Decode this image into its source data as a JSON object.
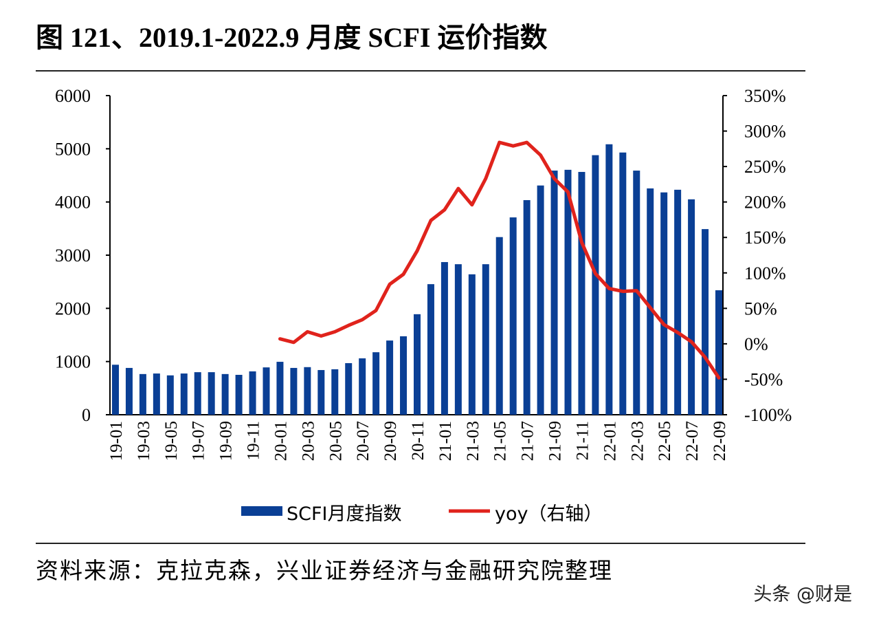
{
  "title": "图 121、2019.1-2022.9 月度 SCFI 运价指数",
  "source": "资料来源：克拉克森，兴业证券经济与金融研究院整理",
  "watermark": "头条 @财是",
  "chart_data": {
    "type": "bar+line",
    "title": "",
    "categories": [
      "19-01",
      "19-02",
      "19-03",
      "19-04",
      "19-05",
      "19-06",
      "19-07",
      "19-08",
      "19-09",
      "19-10",
      "19-11",
      "19-12",
      "20-01",
      "20-02",
      "20-03",
      "20-04",
      "20-05",
      "20-06",
      "20-07",
      "20-08",
      "20-09",
      "20-10",
      "20-11",
      "20-12",
      "21-01",
      "21-02",
      "21-03",
      "21-04",
      "21-05",
      "21-06",
      "21-07",
      "21-08",
      "21-09",
      "21-10",
      "21-11",
      "21-12",
      "22-01",
      "22-02",
      "22-03",
      "22-04",
      "22-05",
      "22-06",
      "22-07",
      "22-08",
      "22-09"
    ],
    "x_tick_labels": [
      "19-01",
      "19-03",
      "19-05",
      "19-07",
      "19-09",
      "19-11",
      "20-01",
      "20-03",
      "20-05",
      "20-07",
      "20-09",
      "20-11",
      "21-01",
      "21-03",
      "21-05",
      "21-07",
      "21-09",
      "21-11",
      "22-01",
      "22-03",
      "22-05",
      "22-07",
      "22-09"
    ],
    "left_axis": {
      "ylim": [
        0,
        6000
      ],
      "ticks": [
        "0",
        "1000",
        "2000",
        "3000",
        "4000",
        "5000",
        "6000"
      ]
    },
    "right_axis": {
      "ylim": [
        -100,
        350
      ],
      "unit": "%",
      "ticks": [
        "-100%",
        "-50%",
        "0%",
        "50%",
        "100%",
        "150%",
        "200%",
        "250%",
        "300%",
        "350%"
      ]
    },
    "grid": false,
    "legend_position": "bottom",
    "series": [
      {
        "name": "SCFI月度指数",
        "type": "bar",
        "axis": "left",
        "color": "#0a3f95",
        "values": [
          940,
          880,
          765,
          775,
          740,
          775,
          800,
          800,
          765,
          750,
          815,
          890,
          995,
          880,
          895,
          840,
          855,
          970,
          1060,
          1175,
          1395,
          1475,
          1890,
          2455,
          2870,
          2830,
          2640,
          2830,
          3340,
          3710,
          4035,
          4310,
          4590,
          4605,
          4565,
          4880,
          5085,
          4930,
          4590,
          4255,
          4180,
          4230,
          4050,
          3490,
          2340
        ]
      },
      {
        "name": "yoy（右轴）",
        "type": "line",
        "axis": "right",
        "color": "#e0231c",
        "values": [
          null,
          null,
          null,
          null,
          null,
          null,
          null,
          null,
          null,
          null,
          null,
          null,
          7,
          2,
          17,
          11,
          17,
          26,
          34,
          47,
          84,
          98,
          131,
          174,
          189,
          219,
          196,
          233,
          284,
          279,
          284,
          266,
          233,
          214,
          143,
          99,
          78,
          74,
          75,
          51,
          27,
          16,
          3,
          -19,
          -48
        ]
      }
    ]
  }
}
